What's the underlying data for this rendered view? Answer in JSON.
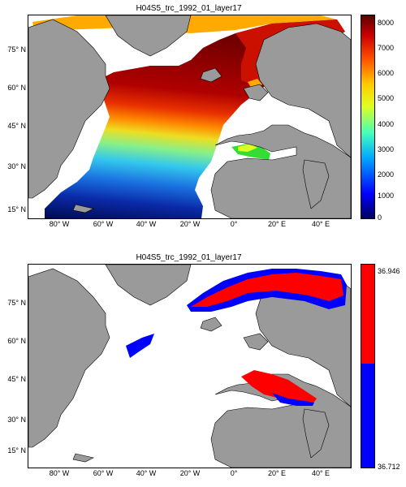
{
  "map_top": {
    "title": "H04S5_trc_1992_01_layer17",
    "y_ticks": [
      "75° N",
      "60° N",
      "45° N",
      "30° N",
      "15° N"
    ],
    "x_ticks": [
      "80° W",
      "60° W",
      "40° W",
      "20° W",
      "0°",
      "20° E",
      "40° E"
    ],
    "colorbar_ticks": [
      "8000",
      "7000",
      "6000",
      "5000",
      "4000",
      "3000",
      "2000",
      "1000",
      "0"
    ],
    "colorbar_range": [
      0,
      8000
    ],
    "colormap": "jet",
    "colors": {
      "land": "#9a9a9a",
      "nodata": "#ffffff",
      "low": "#00005a",
      "high": "#5a0000"
    }
  },
  "map_bottom": {
    "title": "H04S5_trc_1992_01_layer17",
    "y_ticks": [
      "75° N",
      "60° N",
      "45° N",
      "30° N",
      "15° N"
    ],
    "x_ticks": [
      "80° W",
      "60° W",
      "40° W",
      "20° W",
      "0°",
      "20° E",
      "40° E"
    ],
    "colorbar_ticks": [
      "36.946",
      "36.712"
    ],
    "colorbar_range": [
      36.712,
      36.946
    ],
    "colors": {
      "land": "#9a9a9a",
      "upper": "#ff0000",
      "lower": "#0000ff"
    }
  }
}
